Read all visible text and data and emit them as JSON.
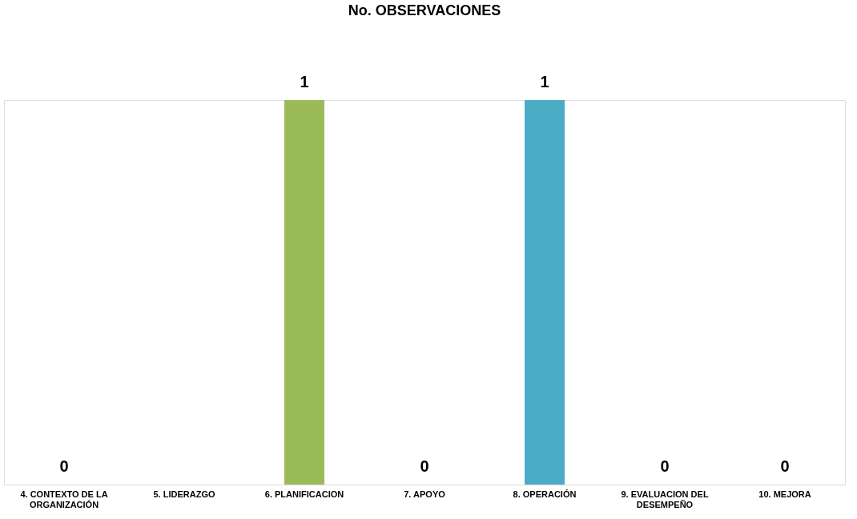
{
  "chart_data": {
    "type": "bar",
    "title": "No. OBSERVACIONES",
    "categories": [
      "4. CONTEXTO DE LA ORGANIZACIÓN",
      "5. LIDERAZGO",
      "6. PLANIFICACION",
      "7. APOYO",
      "8. OPERACIÓN",
      "9. EVALUACION DEL DESEMPEÑO",
      "10. MEJORA"
    ],
    "values": [
      0,
      0,
      1,
      0,
      1,
      0,
      0
    ],
    "colors": [
      "#4f81bd",
      "#c0504d",
      "#9bbb59",
      "#8064a2",
      "#4bacc6",
      "#f79646",
      "#2c4d75"
    ],
    "value_labels": [
      "0",
      null,
      "1",
      "0",
      "1",
      "0",
      "0"
    ],
    "grid": false,
    "legend": false
  }
}
